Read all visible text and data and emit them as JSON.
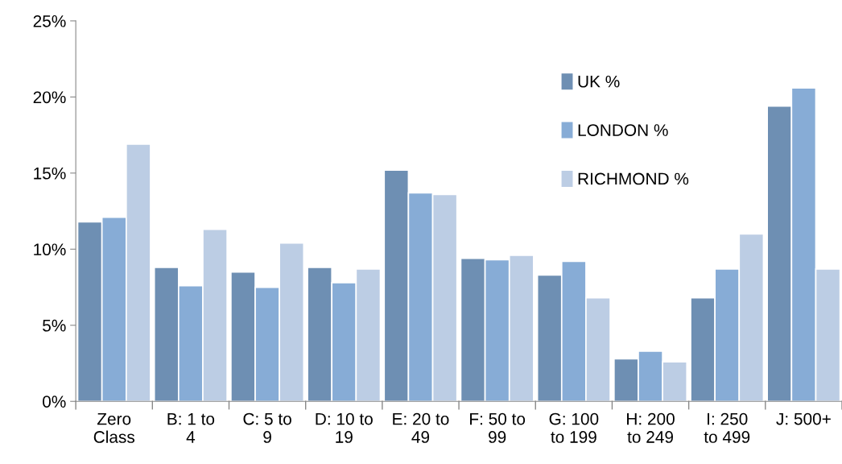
{
  "chart_data": {
    "type": "bar",
    "categories": [
      "Zero Class",
      "B: 1 to 4",
      "C: 5 to 9",
      "D: 10 to 19",
      "E: 20 to 49",
      "F: 50 to 99",
      "G: 100 to 199",
      "H: 200 to 249",
      "I: 250 to 499",
      "J: 500+"
    ],
    "series": [
      {
        "name": "UK %",
        "color": "#6e8fb3",
        "values": [
          11.8,
          8.8,
          8.5,
          8.8,
          15.2,
          9.4,
          8.3,
          2.8,
          6.8,
          19.4
        ]
      },
      {
        "name": "LONDON %",
        "color": "#87acd6",
        "values": [
          12.1,
          7.6,
          7.5,
          7.8,
          13.7,
          9.3,
          9.2,
          3.3,
          8.7,
          20.6
        ]
      },
      {
        "name": "RICHMOND %",
        "color": "#bccde4",
        "values": [
          16.9,
          11.3,
          10.4,
          8.7,
          13.6,
          9.6,
          6.8,
          2.6,
          11.0,
          8.7
        ]
      }
    ],
    "ylim": [
      0,
      25
    ],
    "yticks": [
      {
        "value": 0,
        "label": "0%"
      },
      {
        "value": 5,
        "label": "5%"
      },
      {
        "value": 10,
        "label": "10%"
      },
      {
        "value": 15,
        "label": "15%"
      },
      {
        "value": 20,
        "label": "20%"
      },
      {
        "value": 25,
        "label": "25%"
      }
    ],
    "legend": "top right",
    "grid": false
  }
}
